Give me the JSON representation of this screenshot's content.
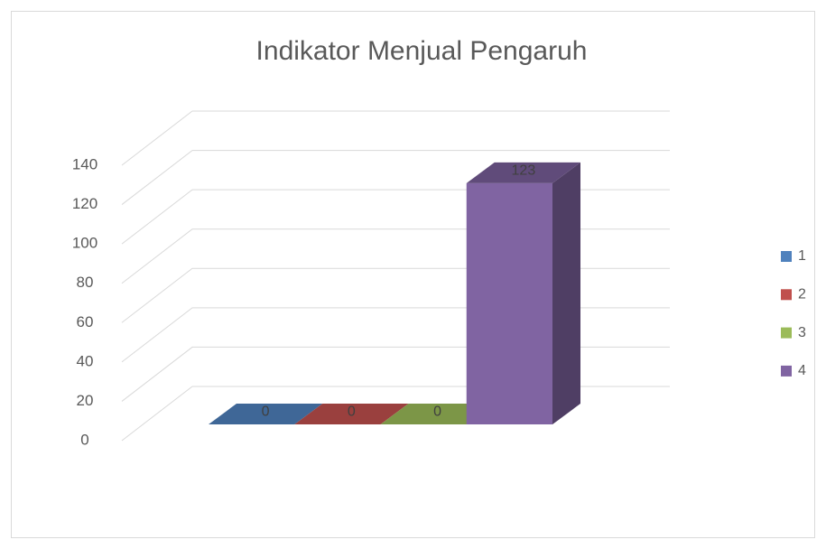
{
  "chart_data": {
    "type": "bar3d",
    "title": "Indikator Menjual Pengaruh",
    "categories": [
      null
    ],
    "series": [
      {
        "name": "1",
        "color": "#4f81bd",
        "values": [
          0
        ]
      },
      {
        "name": "2",
        "color": "#c0504d",
        "values": [
          0
        ]
      },
      {
        "name": "3",
        "color": "#9bbb59",
        "values": [
          0
        ]
      },
      {
        "name": "4",
        "color": "#8064a2",
        "values": [
          123
        ]
      }
    ],
    "ylim": [
      0,
      140
    ],
    "yticks": [
      0,
      20,
      40,
      60,
      80,
      100,
      120,
      140
    ],
    "grid": true,
    "legend": "right"
  }
}
